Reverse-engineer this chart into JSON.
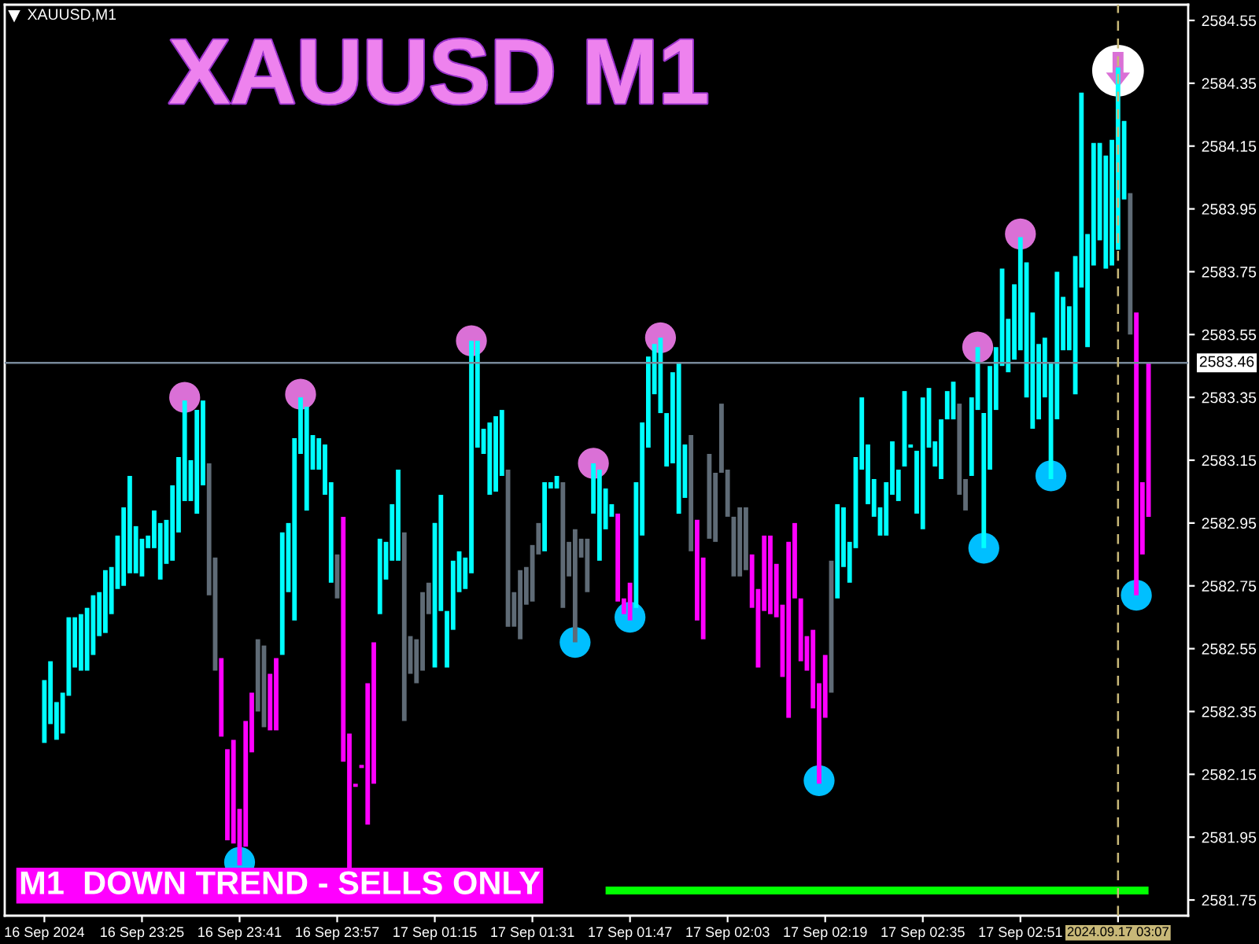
{
  "chart_data": {
    "type": "bar",
    "title": "XAUUSD M1",
    "categories": [
      "16 Sep 2024",
      null,
      null,
      null,
      null,
      null,
      null,
      null,
      null,
      null,
      null,
      null,
      null,
      null,
      null,
      null,
      "16 Sep 23:25",
      null,
      null,
      null,
      null,
      null,
      null,
      null,
      null,
      null,
      null,
      null,
      null,
      null,
      null,
      null,
      "16 Sep 23:41",
      null,
      null,
      null,
      null,
      null,
      null,
      null,
      null,
      null,
      null,
      null,
      null,
      null,
      null,
      null,
      "16 Sep 23:57",
      null,
      null,
      null,
      null,
      null,
      null,
      null,
      null,
      null,
      null,
      null,
      null,
      null,
      null,
      null,
      "17 Sep 01:15",
      null,
      null,
      null,
      null,
      null,
      null,
      null,
      null,
      null,
      null,
      null,
      null,
      null,
      null,
      null,
      "17 Sep 01:31",
      null,
      null,
      null,
      null,
      null,
      null,
      null,
      null,
      null,
      null,
      null,
      null,
      null,
      null,
      null,
      "17 Sep 01:47",
      null,
      null,
      null,
      null,
      null,
      null,
      null,
      null,
      null,
      null,
      null,
      null,
      null,
      null,
      null,
      "17 Sep 02:03",
      null,
      null,
      null,
      null,
      null,
      null,
      null,
      null,
      null,
      null,
      null,
      null,
      null,
      null,
      null,
      "17 Sep 02:19",
      null,
      null,
      null,
      null,
      null,
      null,
      null,
      null,
      null,
      null,
      null,
      null,
      null,
      null,
      null,
      "17 Sep 02:35",
      null,
      null,
      null,
      null,
      null,
      null,
      null,
      null,
      null,
      null,
      null,
      null,
      null,
      null,
      null,
      "17 Sep 02:51",
      null,
      null,
      null,
      null,
      null,
      null,
      null,
      null,
      null,
      null,
      null,
      null,
      null,
      null,
      null,
      "2024.09.17 03:07",
      null,
      null,
      null,
      null,
      null
    ],
    "series": [
      {
        "base": [
          2582.25,
          2582.31,
          2582.26,
          2582.28,
          2582.4,
          2582.49,
          2582.48,
          2582.48,
          2582.53,
          2582.59,
          2582.6,
          2582.66,
          2582.74,
          2582.75,
          2582.79,
          2582.79,
          2582.78,
          2582.87,
          2582.87,
          2582.77,
          2582.82,
          2582.83,
          2582.92,
          2583.02,
          2583.02,
          2582.98,
          2583.07,
          2582.72,
          2582.48,
          2582.27,
          2581.94,
          2581.93,
          2581.86,
          2581.92,
          2582.22,
          2582.35,
          2582.3,
          2582.29,
          2582.29,
          2582.53,
          2582.73,
          2582.64,
          2583.17,
          2582.99,
          2583.12,
          2583.12,
          2583.04,
          2582.76,
          2582.71,
          2582.19,
          2581.82,
          2582.11,
          2582.17,
          2581.99,
          2582.12,
          2582.66,
          2582.77,
          2582.83,
          2582.83,
          2582.32,
          2582.47,
          2582.44,
          2582.48,
          2582.66,
          2582.49,
          2582.67,
          2582.49,
          2582.61,
          2582.73,
          2582.74,
          2582.79,
          2583.19,
          2583.17,
          2583.04,
          2583.05,
          2583.1,
          2582.62,
          2582.62,
          2582.58,
          2582.69,
          2582.7,
          2582.85,
          2582.86,
          2583.06,
          2583.06,
          2582.68,
          2582.78,
          2582.57,
          2582.84,
          2582.73,
          2582.98,
          2582.83,
          2582.93,
          2582.97,
          2582.7,
          2582.66,
          2582.64,
          2582.68,
          2582.91,
          2583.19,
          2583.36,
          2583.3,
          2583.13,
          2583.14,
          2582.98,
          2583.03,
          2582.86,
          2582.64,
          2582.58,
          2582.9,
          2582.89,
          2583.11,
          2582.97,
          2582.78,
          2582.78,
          2582.8,
          2582.68,
          2582.49,
          2582.67,
          2582.66,
          2582.65,
          2582.46,
          2582.33,
          2582.71,
          2582.51,
          2582.48,
          2582.36,
          2582.12,
          2582.33,
          2582.41,
          2582.71,
          2582.81,
          2582.76,
          2582.87,
          2583.12,
          2583.01,
          2582.97,
          2582.91,
          2582.91,
          2583.04,
          2583.02,
          2583.13,
          2583.19,
          2582.98,
          2582.93,
          2583.19,
          2583.13,
          2583.09,
          2583.28,
          2583.28,
          2583.04,
          2582.99,
          2583.1,
          2583.31,
          2582.87,
          2583.12,
          2583.31,
          2583.45,
          2583.43,
          2583.47,
          2583.5,
          2583.35,
          2583.25,
          2583.28,
          2583.35,
          2583.09,
          2583.28,
          2583.5,
          2583.5,
          2583.36,
          2583.7,
          2583.51,
          2583.77,
          2583.85,
          2583.76,
          2583.77,
          2583.82,
          2583.98,
          2583.55,
          2582.72,
          2582.85,
          2582.97
        ],
        "values": [
          0.2,
          0.2,
          0.12,
          0.13,
          0.25,
          0.16,
          0.18,
          0.2,
          0.19,
          0.14,
          0.2,
          0.15,
          0.17,
          0.25,
          0.31,
          0.15,
          0.12,
          0.04,
          0.12,
          0.18,
          0.14,
          0.24,
          0.24,
          0.32,
          0.13,
          0.33,
          0.27,
          0.42,
          0.36,
          0.25,
          0.29,
          0.33,
          0.18,
          0.4,
          0.19,
          0.23,
          0.26,
          0.18,
          0.23,
          0.39,
          0.22,
          0.58,
          0.18,
          0.33,
          0.11,
          0.1,
          0.16,
          0.32,
          0.14,
          0.78,
          0.46,
          0.01,
          0.01,
          0.45,
          0.45,
          0.24,
          0.12,
          0.18,
          0.29,
          0.6,
          0.12,
          0.14,
          0.25,
          0.1,
          0.46,
          0.37,
          0.18,
          0.22,
          0.13,
          0.1,
          0.74,
          0.34,
          0.08,
          0.23,
          0.24,
          0.21,
          0.5,
          0.11,
          0.22,
          0.12,
          0.18,
          0.1,
          0.22,
          0.02,
          0.04,
          0.4,
          0.11,
          0.36,
          0.06,
          0.17,
          0.16,
          0.29,
          0.13,
          0.04,
          0.28,
          0.05,
          0.12,
          0.4,
          0.36,
          0.29,
          0.16,
          0.24,
          0.17,
          0.29,
          0.48,
          0.17,
          0.37,
          0.32,
          0.26,
          0.27,
          0.22,
          0.22,
          0.15,
          0.19,
          0.22,
          0.2,
          0.17,
          0.25,
          0.24,
          0.25,
          0.17,
          0.23,
          0.56,
          0.24,
          0.2,
          0.11,
          0.25,
          0.32,
          0.2,
          0.42,
          0.3,
          0.19,
          0.13,
          0.29,
          0.23,
          0.19,
          0.12,
          0.09,
          0.17,
          0.17,
          0.1,
          0.24,
          0.01,
          0.2,
          0.42,
          0.19,
          0.08,
          0.19,
          0.09,
          0.12,
          0.29,
          0.1,
          0.25,
          0.2,
          0.43,
          0.33,
          0.2,
          0.31,
          0.17,
          0.24,
          0.36,
          0.43,
          0.37,
          0.24,
          0.19,
          0.37,
          0.47,
          0.17,
          0.14,
          0.44,
          0.62,
          0.36,
          0.39,
          0.31,
          0.36,
          0.4,
          0.58,
          0.25,
          0.45,
          0.9,
          0.23,
          0.49
        ],
        "colors": [
          "#00ffff",
          "#00ffff",
          "#00ffff",
          "#00ffff",
          "#00ffff",
          "#00ffff",
          "#00ffff",
          "#00ffff",
          "#00ffff",
          "#00ffff",
          "#00ffff",
          "#00ffff",
          "#00ffff",
          "#00ffff",
          "#00ffff",
          "#00ffff",
          "#00ffff",
          "#00ffff",
          "#00ffff",
          "#00ffff",
          "#00ffff",
          "#00ffff",
          "#00ffff",
          "#00ffff",
          "#00ffff",
          "#00ffff",
          "#00ffff",
          "#5f6b76",
          "#5f6b76",
          "#ff00ff",
          "#ff00ff",
          "#ff00ff",
          "#ff00ff",
          "#ff00ff",
          "#ff00ff",
          "#5f6b76",
          "#5f6b76",
          "#ff00ff",
          "#ff00ff",
          "#00ffff",
          "#00ffff",
          "#00ffff",
          "#00ffff",
          "#00ffff",
          "#00ffff",
          "#00ffff",
          "#00ffff",
          "#00ffff",
          "#5f6b76",
          "#ff00ff",
          "#ff00ff",
          "#ff00ff",
          "#ff00ff",
          "#ff00ff",
          "#ff00ff",
          "#00ffff",
          "#00ffff",
          "#00ffff",
          "#00ffff",
          "#5f6b76",
          "#5f6b76",
          "#5f6b76",
          "#5f6b76",
          "#5f6b76",
          "#00ffff",
          "#00ffff",
          "#00ffff",
          "#00ffff",
          "#00ffff",
          "#00ffff",
          "#00ffff",
          "#00ffff",
          "#00ffff",
          "#00ffff",
          "#00ffff",
          "#00ffff",
          "#5f6b76",
          "#5f6b76",
          "#5f6b76",
          "#5f6b76",
          "#5f6b76",
          "#5f6b76",
          "#00ffff",
          "#00ffff",
          "#00ffff",
          "#5f6b76",
          "#5f6b76",
          "#5f6b76",
          "#5f6b76",
          "#5f6b76",
          "#00ffff",
          "#00ffff",
          "#00ffff",
          "#00ffff",
          "#ff00ff",
          "#ff00ff",
          "#ff00ff",
          "#00ffff",
          "#00ffff",
          "#00ffff",
          "#00ffff",
          "#00ffff",
          "#00ffff",
          "#00ffff",
          "#00ffff",
          "#00ffff",
          "#5f6b76",
          "#ff00ff",
          "#ff00ff",
          "#5f6b76",
          "#5f6b76",
          "#5f6b76",
          "#5f6b76",
          "#5f6b76",
          "#5f6b76",
          "#5f6b76",
          "#ff00ff",
          "#ff00ff",
          "#ff00ff",
          "#ff00ff",
          "#ff00ff",
          "#ff00ff",
          "#ff00ff",
          "#ff00ff",
          "#ff00ff",
          "#ff00ff",
          "#ff00ff",
          "#ff00ff",
          "#ff00ff",
          "#5f6b76",
          "#00ffff",
          "#00ffff",
          "#00ffff",
          "#00ffff",
          "#00ffff",
          "#00ffff",
          "#00ffff",
          "#00ffff",
          "#00ffff",
          "#00ffff",
          "#00ffff",
          "#00ffff",
          "#00ffff",
          "#00ffff",
          "#00ffff",
          "#00ffff",
          "#00ffff",
          "#00ffff",
          "#00ffff",
          "#00ffff",
          "#5f6b76",
          "#5f6b76",
          "#00ffff",
          "#00ffff",
          "#00ffff",
          "#00ffff",
          "#00ffff",
          "#00ffff",
          "#00ffff",
          "#00ffff",
          "#00ffff",
          "#00ffff",
          "#00ffff",
          "#00ffff",
          "#00ffff",
          "#00ffff",
          "#00ffff",
          "#00ffff",
          "#00ffff",
          "#00ffff",
          "#00ffff",
          "#00ffff",
          "#00ffff",
          "#00ffff",
          "#00ffff",
          "#00ffff",
          "#00ffff",
          "#00ffff",
          "#5f6b76",
          "#ff00ff",
          "#ff00ff",
          "#ff00ff"
        ]
      },
      {
        "type": "line",
        "color": "#00ff00",
        "values": [
          null,
          null,
          null,
          null,
          null,
          null,
          null,
          null,
          null,
          null,
          null,
          null,
          null,
          null,
          null,
          null,
          null,
          null,
          null,
          null,
          null,
          null,
          null,
          null,
          null,
          null,
          null,
          null,
          null,
          null,
          null,
          null,
          null,
          null,
          null,
          null,
          null,
          null,
          null,
          null,
          null,
          null,
          null,
          null,
          null,
          null,
          null,
          null,
          null,
          null,
          null,
          null,
          null,
          null,
          null,
          null,
          null,
          null,
          null,
          null,
          null,
          null,
          null,
          null,
          null,
          null,
          null,
          null,
          null,
          null,
          null,
          null,
          null,
          null,
          null,
          null,
          null,
          null,
          null,
          null,
          null,
          null,
          null,
          null,
          null,
          null,
          null,
          null,
          null,
          null,
          null,
          null,
          2581.78,
          2581.78,
          2581.78,
          2581.78,
          2581.78,
          2581.78,
          2581.78,
          2581.78,
          2581.78,
          2581.78,
          2581.78,
          2581.78,
          2581.78,
          2581.78,
          2581.78,
          2581.78,
          2581.78,
          2581.78,
          2581.78,
          2581.78,
          2581.78,
          2581.78,
          2581.78,
          2581.78,
          2581.78,
          2581.78,
          2581.78,
          2581.78,
          2581.78,
          2581.78,
          2581.78,
          2581.78,
          2581.78,
          2581.78,
          2581.78,
          2581.78,
          2581.78,
          2581.78,
          2581.78,
          2581.78,
          2581.78,
          2581.78,
          2581.78,
          2581.78,
          2581.78,
          2581.78,
          2581.78,
          2581.78,
          2581.78,
          2581.78,
          2581.78,
          2581.78,
          2581.78,
          2581.78,
          2581.78,
          2581.78,
          2581.78,
          2581.78,
          2581.78,
          2581.78,
          2581.78,
          2581.78,
          2581.78,
          2581.78,
          2581.78,
          2581.78,
          2581.78,
          2581.78,
          2581.78,
          2581.78,
          2581.78,
          2581.78,
          2581.78,
          2581.78,
          2581.78,
          2581.78,
          2581.78,
          2581.78,
          2581.78,
          2581.78,
          2581.78,
          2581.78,
          2581.78,
          2581.78,
          2581.78,
          2581.78,
          2581.78,
          2581.78,
          2581.78,
          2581.78
        ]
      },
      {
        "type": "scatter",
        "color": "#da70d6",
        "marker": "circle",
        "values": [
          null,
          null,
          null,
          null,
          null,
          null,
          null,
          null,
          null,
          null,
          null,
          null,
          null,
          null,
          null,
          null,
          null,
          null,
          null,
          null,
          null,
          null,
          null,
          2583.35,
          null,
          null,
          null,
          null,
          null,
          null,
          null,
          null,
          null,
          null,
          null,
          null,
          null,
          null,
          null,
          null,
          null,
          null,
          2583.36,
          null,
          null,
          null,
          null,
          null,
          null,
          null,
          null,
          null,
          null,
          null,
          null,
          null,
          null,
          null,
          null,
          null,
          null,
          null,
          null,
          null,
          null,
          null,
          null,
          null,
          null,
          null,
          2583.53,
          null,
          null,
          null,
          null,
          null,
          null,
          null,
          null,
          null,
          null,
          null,
          null,
          null,
          null,
          null,
          null,
          null,
          null,
          null,
          2583.14,
          null,
          null,
          null,
          null,
          null,
          null,
          null,
          null,
          null,
          null,
          2583.54,
          null,
          null,
          null,
          null,
          null,
          null,
          null,
          null,
          null,
          null,
          null,
          null,
          null,
          null,
          null,
          null,
          null,
          null,
          null,
          null,
          null,
          null,
          null,
          null,
          null,
          null,
          null,
          null,
          null,
          null,
          null,
          null,
          null,
          null,
          null,
          null,
          null,
          null,
          null,
          null,
          null,
          null,
          null,
          null,
          null,
          null,
          null,
          null,
          null,
          null,
          null,
          2583.51,
          null,
          null,
          null,
          null,
          null,
          null,
          2583.87,
          null,
          null,
          null,
          null,
          null,
          null,
          null,
          null,
          null,
          null,
          null,
          null,
          null,
          null,
          null,
          null,
          null,
          null,
          null,
          null,
          null
        ]
      },
      {
        "type": "scatter",
        "color": "#00bfff",
        "marker": "circle",
        "values": [
          null,
          null,
          null,
          null,
          null,
          null,
          null,
          null,
          null,
          null,
          null,
          null,
          null,
          null,
          null,
          null,
          null,
          null,
          null,
          null,
          null,
          null,
          null,
          null,
          null,
          null,
          null,
          null,
          null,
          null,
          null,
          null,
          2581.87,
          null,
          null,
          null,
          null,
          null,
          null,
          null,
          null,
          null,
          null,
          null,
          null,
          null,
          null,
          null,
          null,
          null,
          null,
          null,
          null,
          null,
          null,
          null,
          null,
          null,
          null,
          null,
          null,
          null,
          null,
          null,
          null,
          null,
          null,
          null,
          null,
          null,
          null,
          null,
          null,
          null,
          null,
          null,
          null,
          null,
          null,
          null,
          null,
          null,
          null,
          null,
          null,
          null,
          null,
          2582.57,
          null,
          null,
          null,
          null,
          null,
          null,
          null,
          null,
          2582.65,
          null,
          null,
          null,
          null,
          null,
          null,
          null,
          null,
          null,
          null,
          null,
          null,
          null,
          null,
          null,
          null,
          null,
          null,
          null,
          null,
          null,
          null,
          null,
          null,
          null,
          null,
          null,
          null,
          null,
          null,
          2582.13,
          null,
          null,
          null,
          null,
          null,
          null,
          null,
          null,
          null,
          null,
          null,
          null,
          null,
          null,
          null,
          null,
          null,
          null,
          null,
          null,
          null,
          null,
          null,
          null,
          null,
          null,
          2582.87,
          null,
          null,
          null,
          null,
          null,
          null,
          null,
          null,
          null,
          null,
          2583.1,
          null,
          null,
          null,
          null,
          null,
          null,
          null,
          null,
          null,
          null,
          null,
          null,
          null,
          2582.72,
          null,
          null
        ]
      },
      {
        "type": "scatter",
        "color": "#ffffff",
        "marker": "circle",
        "values": [
          null,
          null,
          null,
          null,
          null,
          null,
          null,
          null,
          null,
          null,
          null,
          null,
          null,
          null,
          null,
          null,
          null,
          null,
          null,
          null,
          null,
          null,
          null,
          null,
          null,
          null,
          null,
          null,
          null,
          null,
          null,
          null,
          null,
          null,
          null,
          null,
          null,
          null,
          null,
          null,
          null,
          null,
          null,
          null,
          null,
          null,
          null,
          null,
          null,
          null,
          null,
          null,
          null,
          null,
          null,
          null,
          null,
          null,
          null,
          null,
          null,
          null,
          null,
          null,
          null,
          null,
          null,
          null,
          null,
          null,
          null,
          null,
          null,
          null,
          null,
          null,
          null,
          null,
          null,
          null,
          null,
          null,
          null,
          null,
          null,
          null,
          null,
          null,
          null,
          null,
          null,
          null,
          null,
          null,
          null,
          null,
          null,
          null,
          null,
          null,
          null,
          null,
          null,
          null,
          null,
          null,
          null,
          null,
          null,
          null,
          null,
          null,
          null,
          null,
          null,
          null,
          null,
          null,
          null,
          null,
          null,
          null,
          null,
          null,
          null,
          null,
          null,
          null,
          null,
          null,
          null,
          null,
          null,
          null,
          null,
          null,
          null,
          null,
          null,
          null,
          null,
          null,
          null,
          null,
          null,
          null,
          null,
          null,
          null,
          null,
          null,
          null,
          null,
          null,
          null,
          null,
          null,
          null,
          null,
          null,
          null,
          null,
          null,
          null,
          null,
          null,
          null,
          null,
          null,
          null,
          null,
          null,
          null,
          null,
          null,
          null,
          2584.39,
          null,
          null,
          null,
          null,
          null
        ]
      }
    ],
    "ylim": [
      2581.7,
      2584.6
    ],
    "yticks": [
      2581.75,
      2581.95,
      2582.15,
      2582.35,
      2582.55,
      2582.75,
      2582.95,
      2583.15,
      2583.35,
      2583.55,
      2583.75,
      2583.95,
      2584.15,
      2584.35,
      2584.55
    ],
    "ref_lines": [
      {
        "axis": "y",
        "value": 2583.46,
        "label": "2583.46",
        "color": "#778899"
      },
      {
        "axis": "x",
        "value": "2024.09.17 03:07",
        "color": "#c8b878",
        "line_style": "dashed"
      }
    ],
    "annotations": [
      "XAUUSD,M1",
      "M1  DOWN TREND - SELLS ONLY"
    ]
  }
}
